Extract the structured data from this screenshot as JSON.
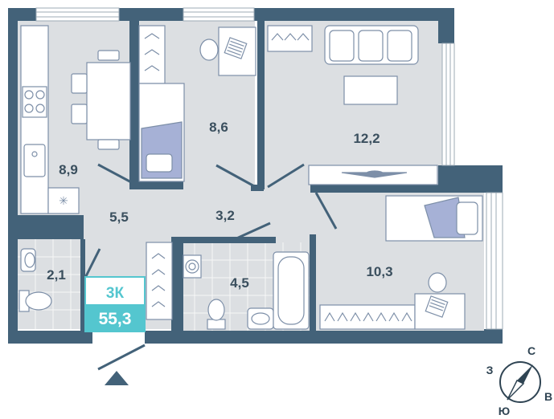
{
  "colors": {
    "wall": "#436279",
    "floor": "#dcdfe2",
    "furniture_line": "#7d8fa8",
    "accent": "#54c6cf",
    "bedding": "#a6b1d6",
    "label": "#3a4f5e"
  },
  "rooms": [
    {
      "id": "kitchen",
      "area": "8,9"
    },
    {
      "id": "bedroom-small",
      "area": "8,6"
    },
    {
      "id": "living-room",
      "area": "12,2"
    },
    {
      "id": "hallway",
      "area": "5,5"
    },
    {
      "id": "corridor",
      "area": "3,2"
    },
    {
      "id": "toilet",
      "area": "2,1"
    },
    {
      "id": "bathroom",
      "area": "4,5"
    },
    {
      "id": "bedroom-large",
      "area": "10,3"
    }
  ],
  "badge": {
    "type": "3К",
    "total_area": "55,3"
  },
  "compass": {
    "north": "С",
    "east": "В",
    "south": "Ю",
    "west": "З"
  },
  "icons": {
    "entrance": "triangle-up-icon",
    "compass": "compass-icon",
    "stove": "cooktop-icon",
    "sink": "sink-icon",
    "toilet": "toilet-icon"
  }
}
